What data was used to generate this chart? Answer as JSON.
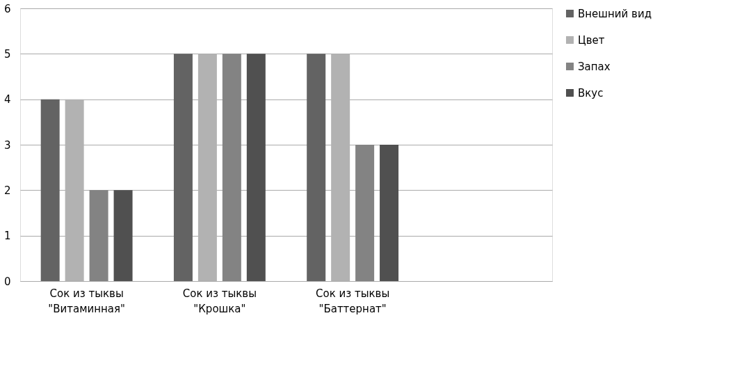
{
  "chart_data": {
    "type": "bar",
    "categories": [
      "Сок из тыквы\n\"Витаминная\"",
      "Сок из тыквы\n\"Крошка\"",
      "Сок из тыквы\n\"Баттернат\"",
      null
    ],
    "series": [
      {
        "name": "Внешний вид",
        "color": "#636363",
        "values": [
          4,
          5,
          5,
          null
        ]
      },
      {
        "name": "Цвет",
        "color": "#b2b2b2",
        "values": [
          4,
          5,
          5,
          null
        ]
      },
      {
        "name": "Запах",
        "color": "#838383",
        "values": [
          2,
          5,
          3,
          null
        ]
      },
      {
        "name": "Вкус",
        "color": "#505050",
        "values": [
          2,
          5,
          3,
          null
        ]
      }
    ],
    "ylim": [
      0,
      6
    ],
    "yticks": [
      0,
      1,
      2,
      3,
      4,
      5,
      6
    ],
    "grid": "y",
    "legend": "right"
  }
}
